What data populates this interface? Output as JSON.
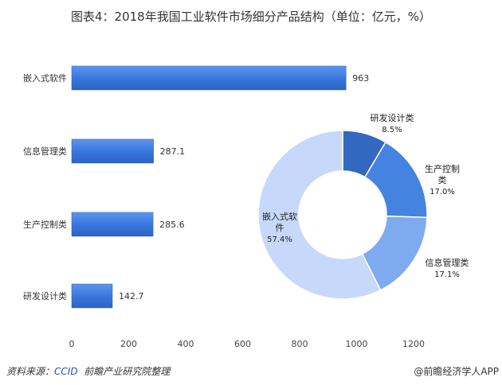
{
  "chart_data": [
    {
      "type": "bar",
      "orientation": "horizontal",
      "title": "图表4：2018年我国工业软件市场细分产品结构（单位：亿元，%）",
      "categories": [
        "嵌入式软件",
        "信息管理类",
        "生产控制类",
        "研发设计类"
      ],
      "values": [
        963,
        287.1,
        285.6,
        142.7
      ],
      "data_labels": [
        "963",
        "287.1",
        "285.6",
        "142.7"
      ],
      "xlim": [
        0,
        1200
      ],
      "xticks": [
        "0",
        "200",
        "400",
        "600",
        "800",
        "1000",
        "1200"
      ],
      "grid": false,
      "color": "#3d7be0"
    },
    {
      "type": "pie",
      "donut": true,
      "slices": [
        {
          "label": "研发设计类",
          "value": 8.5,
          "text": "8.5%",
          "color": "#3268c0"
        },
        {
          "label": "生产控制类",
          "value": 17.0,
          "text": "17.0%",
          "color": "#4484e0"
        },
        {
          "label": "信息管理类",
          "value": 17.1,
          "text": "17.1%",
          "color": "#7eaaf0"
        },
        {
          "label": "嵌入式软件",
          "value": 57.4,
          "text": "57.4%",
          "color": "#c6d9fa"
        }
      ]
    }
  ],
  "footer": {
    "source_prefix": "资料来源：",
    "source_org": "CCID",
    "source_suffix": "前瞻产业研究院整理",
    "credit": "@前瞻经济学人APP"
  }
}
